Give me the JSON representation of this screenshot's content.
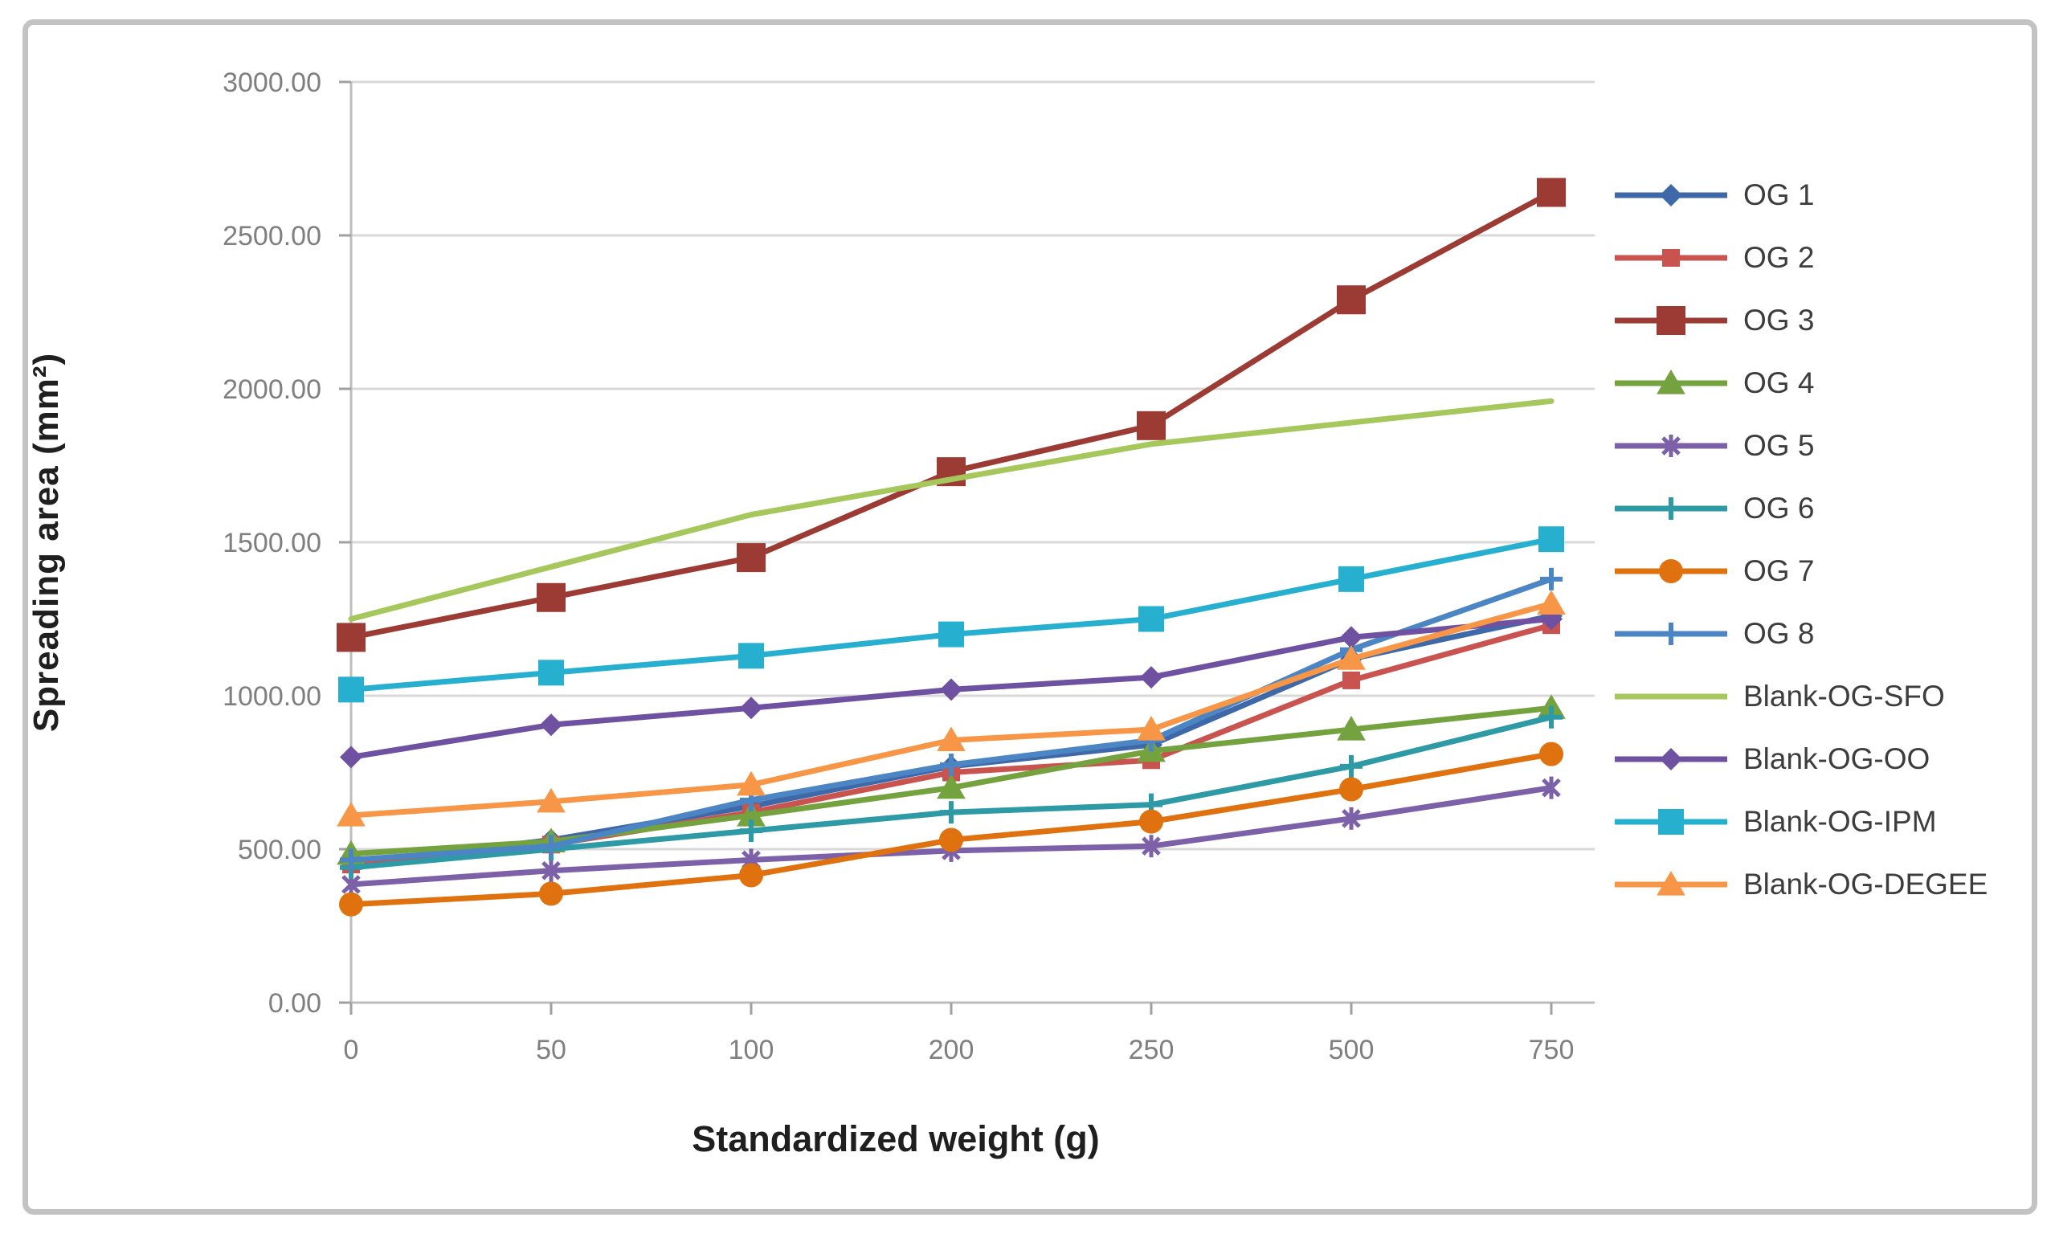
{
  "figure": {
    "background": "#ffffff",
    "frame_border_color": "#c3c3c3"
  },
  "chart_data": {
    "type": "line",
    "title": "",
    "xlabel": "Standardized weight (g)",
    "ylabel": "Spreading area (mm²)",
    "x_categories": [
      "0",
      "50",
      "100",
      "200",
      "250",
      "500",
      "750"
    ],
    "y_ticks": [
      "3000.00",
      "2500.00",
      "2000.00",
      "1500.00",
      "1000.00",
      "500.00",
      "0.00"
    ],
    "ylim": [
      0,
      3000
    ],
    "grid": "horizontal",
    "legend_position": "right",
    "axis_colors": {
      "gridline": "#d8d8d8",
      "axis_line": "#bdbdbd",
      "tick": "#a0a0a0",
      "tick_label": "#7f7f7f"
    },
    "series": [
      {
        "name": "OG 1",
        "color": "#3e68a8",
        "marker": "diamond",
        "values": [
          455,
          530,
          640,
          770,
          840,
          1120,
          1260
        ]
      },
      {
        "name": "OG 2",
        "color": "#c9534e",
        "marker": "square-small",
        "values": [
          450,
          515,
          620,
          750,
          790,
          1050,
          1230
        ]
      },
      {
        "name": "OG 3",
        "color": "#9c3a34",
        "marker": "square-large",
        "values": [
          1190,
          1320,
          1450,
          1730,
          1880,
          2290,
          2640
        ]
      },
      {
        "name": "OG 4",
        "color": "#73a23e",
        "marker": "triangle",
        "values": [
          485,
          525,
          610,
          700,
          820,
          890,
          960
        ]
      },
      {
        "name": "OG 5",
        "color": "#7c61a9",
        "marker": "asterisk",
        "values": [
          385,
          430,
          465,
          495,
          510,
          600,
          700
        ]
      },
      {
        "name": "OG 6",
        "color": "#2e9aa6",
        "marker": "plus",
        "values": [
          440,
          500,
          560,
          620,
          645,
          770,
          930
        ]
      },
      {
        "name": "OG 7",
        "color": "#df720e",
        "marker": "circle",
        "values": [
          320,
          355,
          415,
          530,
          590,
          695,
          810
        ]
      },
      {
        "name": "OG 8",
        "color": "#4c85c4",
        "marker": "plus",
        "values": [
          465,
          510,
          660,
          775,
          855,
          1150,
          1380
        ]
      },
      {
        "name": "Blank-OG-SFO",
        "color": "#a6c75b",
        "marker": "none",
        "values": [
          1250,
          1420,
          1590,
          1705,
          1820,
          1890,
          1960
        ]
      },
      {
        "name": "Blank-OG-OO",
        "color": "#6e51a0",
        "marker": "diamond",
        "values": [
          800,
          905,
          960,
          1020,
          1060,
          1190,
          1250
        ]
      },
      {
        "name": "Blank-OG-IPM",
        "color": "#27afd0",
        "marker": "square",
        "values": [
          1020,
          1075,
          1130,
          1200,
          1250,
          1380,
          1510
        ]
      },
      {
        "name": "Blank-OG-DEGEE",
        "color": "#f79646",
        "marker": "triangle",
        "values": [
          610,
          655,
          710,
          855,
          890,
          1120,
          1300
        ]
      }
    ]
  }
}
